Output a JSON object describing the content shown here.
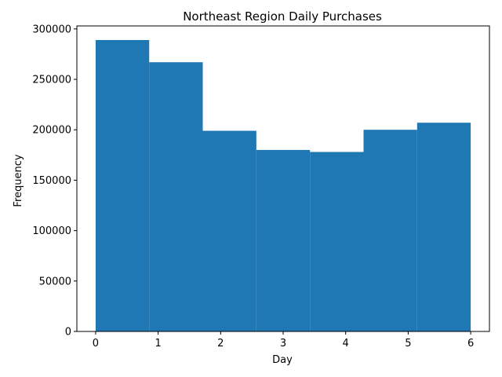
{
  "chart_data": {
    "type": "bar",
    "title": "Northeast Region Daily Purchases",
    "xlabel": "Day",
    "ylabel": "Frequency",
    "xlim": [
      -0.3,
      6.3
    ],
    "ylim": [
      0,
      303000
    ],
    "bin_edges": [
      0,
      0.857,
      1.714,
      2.571,
      3.429,
      4.286,
      5.143,
      6
    ],
    "values": [
      289000,
      267000,
      199000,
      180000,
      178000,
      200000,
      207000
    ],
    "xticks": [
      0,
      1,
      2,
      3,
      4,
      5,
      6
    ],
    "yticks": [
      0,
      50000,
      100000,
      150000,
      200000,
      250000,
      300000
    ],
    "bar_color": "#1f77b4",
    "grid": false,
    "legend": null
  }
}
